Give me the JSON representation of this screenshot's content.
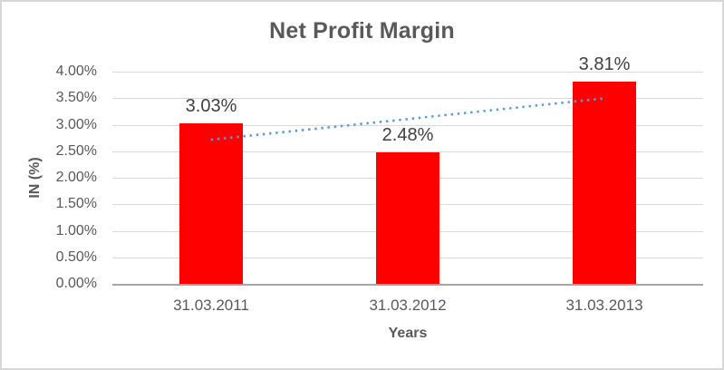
{
  "chart_data": {
    "type": "bar",
    "title": "Net Profit Margin",
    "xlabel": "Years",
    "ylabel": "IN (%)",
    "categories": [
      "31.03.2011",
      "31.03.2012",
      "31.03.2013"
    ],
    "values": [
      3.03,
      2.48,
      3.81
    ],
    "data_labels": [
      "3.03%",
      "2.48%",
      "3.81%"
    ],
    "ylim": [
      0,
      4
    ],
    "ytick_step": 0.5,
    "ytick_labels": [
      "4.00%",
      "3.50%",
      "3.00%",
      "2.50%",
      "2.00%",
      "1.50%",
      "1.00%",
      "0.50%",
      "0.00%"
    ],
    "grid": true,
    "legend": "none",
    "trendline": {
      "type": "linear",
      "style": "dotted",
      "color": "#5b9bd5"
    },
    "colors": {
      "bar": "#ff0000",
      "gridline": "#d9d9d9",
      "axis_line": "#a6a6a6",
      "title_text": "#595959",
      "tick_text": "#595959",
      "data_label_text": "#404040"
    }
  }
}
